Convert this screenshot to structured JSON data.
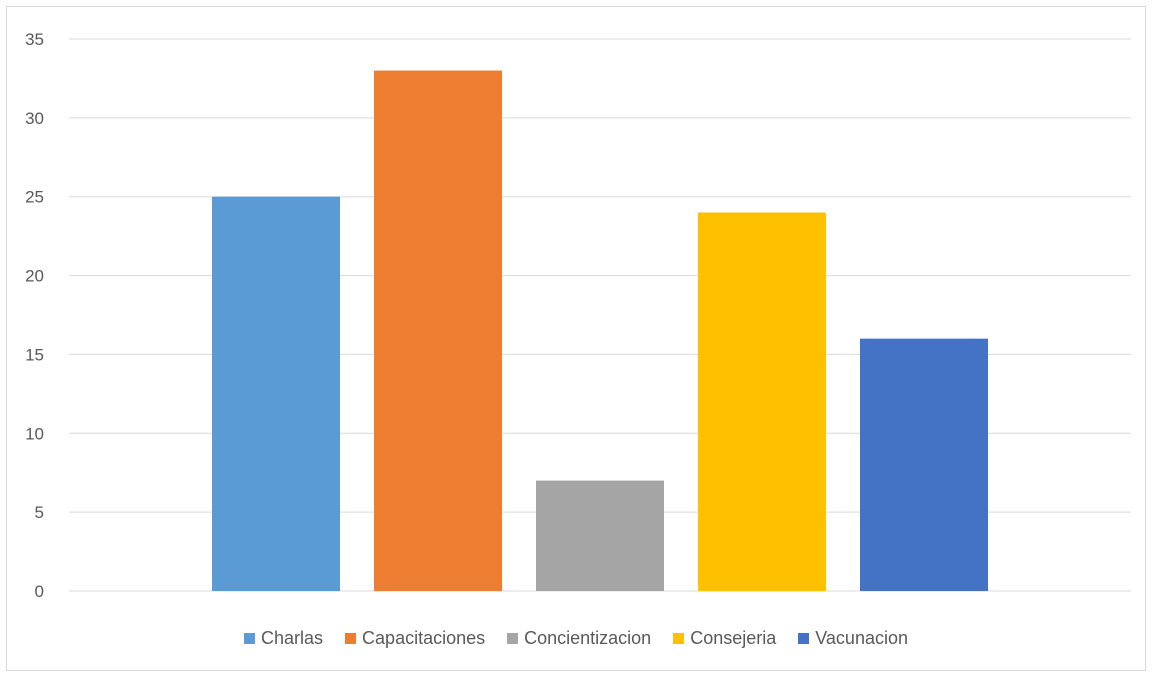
{
  "chart_data": {
    "type": "bar",
    "categories": [
      "Charlas",
      "Capacitaciones",
      "Concientizacion",
      "Consejeria",
      "Vacunacion"
    ],
    "values": [
      25,
      33,
      7,
      24,
      16
    ],
    "colors": [
      "#5b9bd5",
      "#ed7d31",
      "#a5a5a5",
      "#ffc000",
      "#4472c4"
    ],
    "ylim": [
      0,
      35
    ],
    "yticks": [
      0,
      5,
      10,
      15,
      20,
      25,
      30,
      35
    ],
    "grid": true,
    "legend_position": "bottom",
    "title": "",
    "xlabel": "",
    "ylabel": ""
  }
}
